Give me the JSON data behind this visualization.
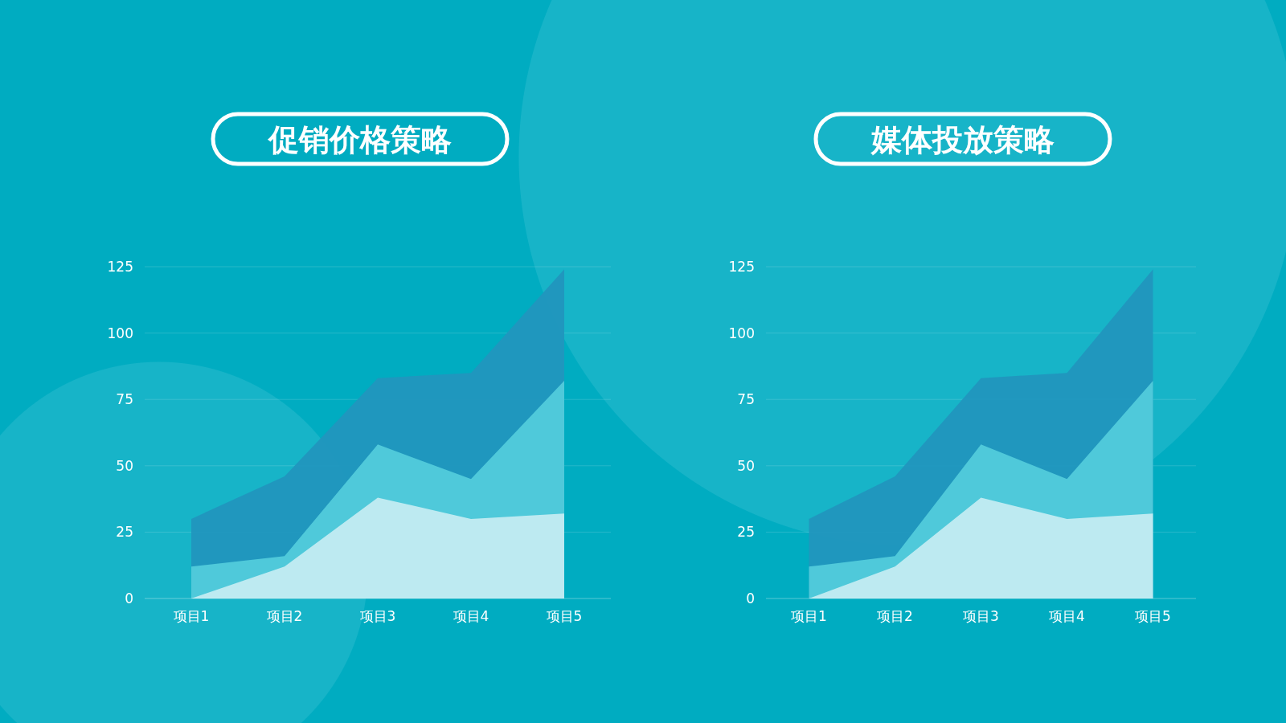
{
  "chart_data": [
    {
      "type": "area",
      "title": "促销价格策略",
      "categories": [
        "项目1",
        "项目2",
        "项目3",
        "项目4",
        "项目5"
      ],
      "ylim": [
        0,
        125
      ],
      "yticks": [
        0,
        25,
        50,
        75,
        100,
        125
      ],
      "grid": "y",
      "series": [
        {
          "color": "#2196be",
          "values": [
            30,
            46,
            83,
            85,
            124
          ]
        },
        {
          "color": "#52cbdb",
          "values": [
            12,
            16,
            58,
            45,
            82
          ]
        },
        {
          "color": "#c3ecf2",
          "values": [
            0,
            12,
            38,
            30,
            32
          ]
        }
      ]
    },
    {
      "type": "area",
      "title": "媒体投放策略",
      "categories": [
        "项目1",
        "项目2",
        "项目3",
        "项目4",
        "项目5"
      ],
      "ylim": [
        0,
        125
      ],
      "yticks": [
        0,
        25,
        50,
        75,
        100,
        125
      ],
      "grid": "y",
      "series": [
        {
          "color": "#2196be",
          "values": [
            30,
            46,
            83,
            85,
            124
          ]
        },
        {
          "color": "#52cbdb",
          "values": [
            12,
            16,
            58,
            45,
            82
          ]
        },
        {
          "color": "#c3ecf2",
          "values": [
            0,
            12,
            38,
            30,
            32
          ]
        }
      ]
    }
  ]
}
